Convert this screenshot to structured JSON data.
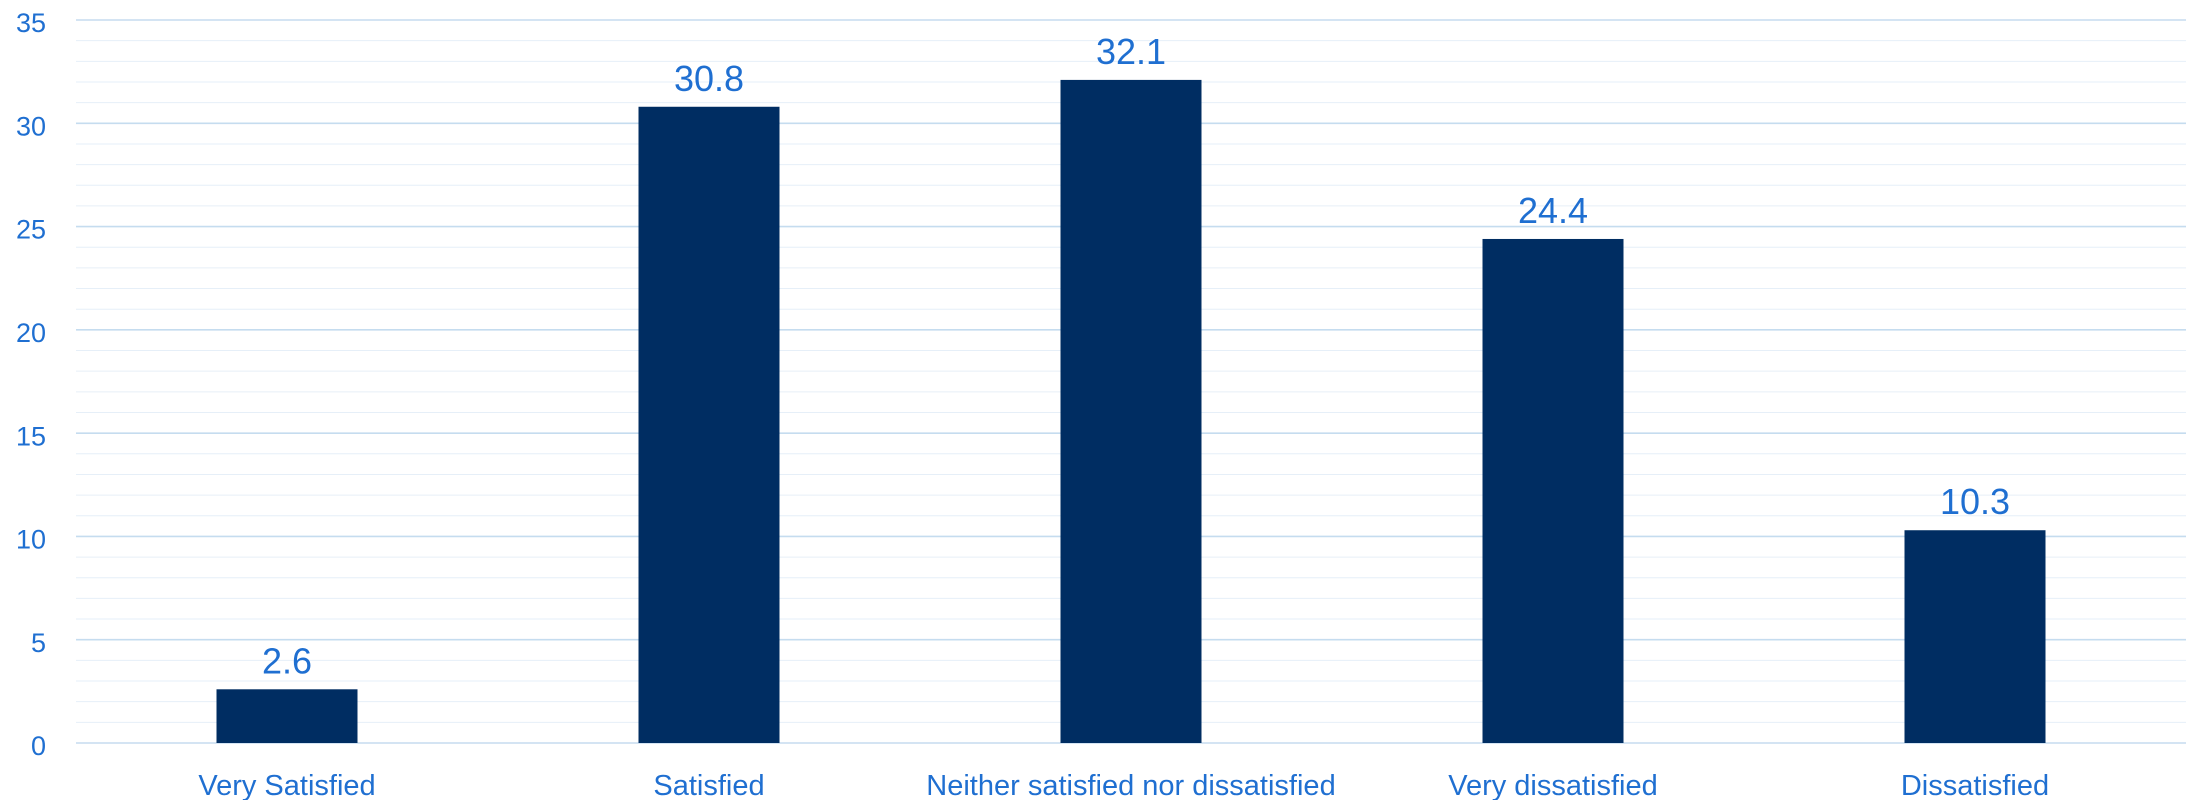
{
  "chart_data": {
    "type": "bar",
    "title": "",
    "xlabel": "",
    "ylabel": "",
    "categories": [
      "Very Satisfied",
      "Satisfied",
      "Neither satisfied nor dissatisfied",
      "Very dissatisfied",
      "Dissatisfied"
    ],
    "values": [
      2.6,
      30.8,
      32.1,
      24.4,
      10.3
    ],
    "value_labels": [
      "2.6",
      "30.8",
      "32.1",
      "24.4",
      "10.3"
    ],
    "ylim": [
      0,
      35
    ],
    "yticks": [
      0,
      5,
      10,
      15,
      20,
      25,
      30,
      35
    ],
    "minor_step": 1,
    "grid": true,
    "legend": "none",
    "colors": {
      "bar": "#002d62",
      "labels": "#1f6fd1",
      "grid": "#c5dcef"
    }
  }
}
